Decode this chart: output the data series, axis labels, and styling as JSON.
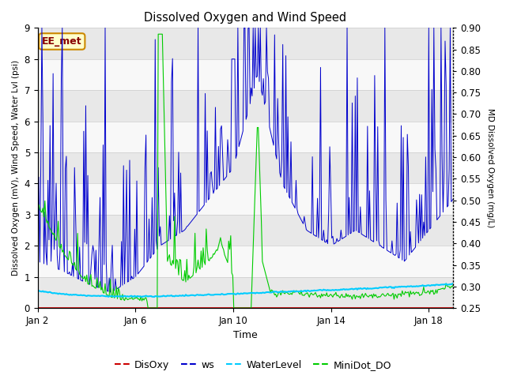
{
  "title": "Dissolved Oxygen and Wind Speed",
  "xlabel": "Time",
  "ylabel_left": "Dissolved Oxygen (mV), Wind Speed, Water Lvl (psi)",
  "ylabel_right": "MD Dissolved Oxygen (mg/L)",
  "ylim_left": [
    0.0,
    9.0
  ],
  "ylim_right": [
    0.25,
    0.9
  ],
  "yticks_left": [
    0.0,
    1.0,
    2.0,
    3.0,
    4.0,
    5.0,
    6.0,
    7.0,
    8.0,
    9.0
  ],
  "yticks_right": [
    0.25,
    0.3,
    0.35,
    0.4,
    0.45,
    0.5,
    0.55,
    0.6,
    0.65,
    0.7,
    0.75,
    0.8,
    0.85,
    0.9
  ],
  "xtick_positions": [
    0,
    4,
    8,
    12,
    16
  ],
  "xtick_labels": [
    "Jan 2",
    "Jan 6",
    "Jan 10",
    "Jan 14",
    "Jan 18"
  ],
  "annotation_text": "EE_met",
  "annotation_facecolor": "#ffffcc",
  "annotation_edgecolor": "#cc8800",
  "annotation_textcolor": "#880000",
  "colors": {
    "DisOxy": "#cc0000",
    "ws": "#0000cc",
    "WaterLevel": "#00ccff",
    "MiniDot_DO": "#00cc00"
  },
  "legend_labels": [
    "DisOxy",
    "ws",
    "WaterLevel",
    "MiniDot_DO"
  ],
  "fig_facecolor": "#ffffff",
  "plot_facecolor": "#ffffff",
  "band_colors": [
    "#e8e8e8",
    "#f8f8f8"
  ],
  "grid_color": "#cccccc",
  "right_spine_color": "#888888",
  "xlim": [
    0,
    17
  ]
}
